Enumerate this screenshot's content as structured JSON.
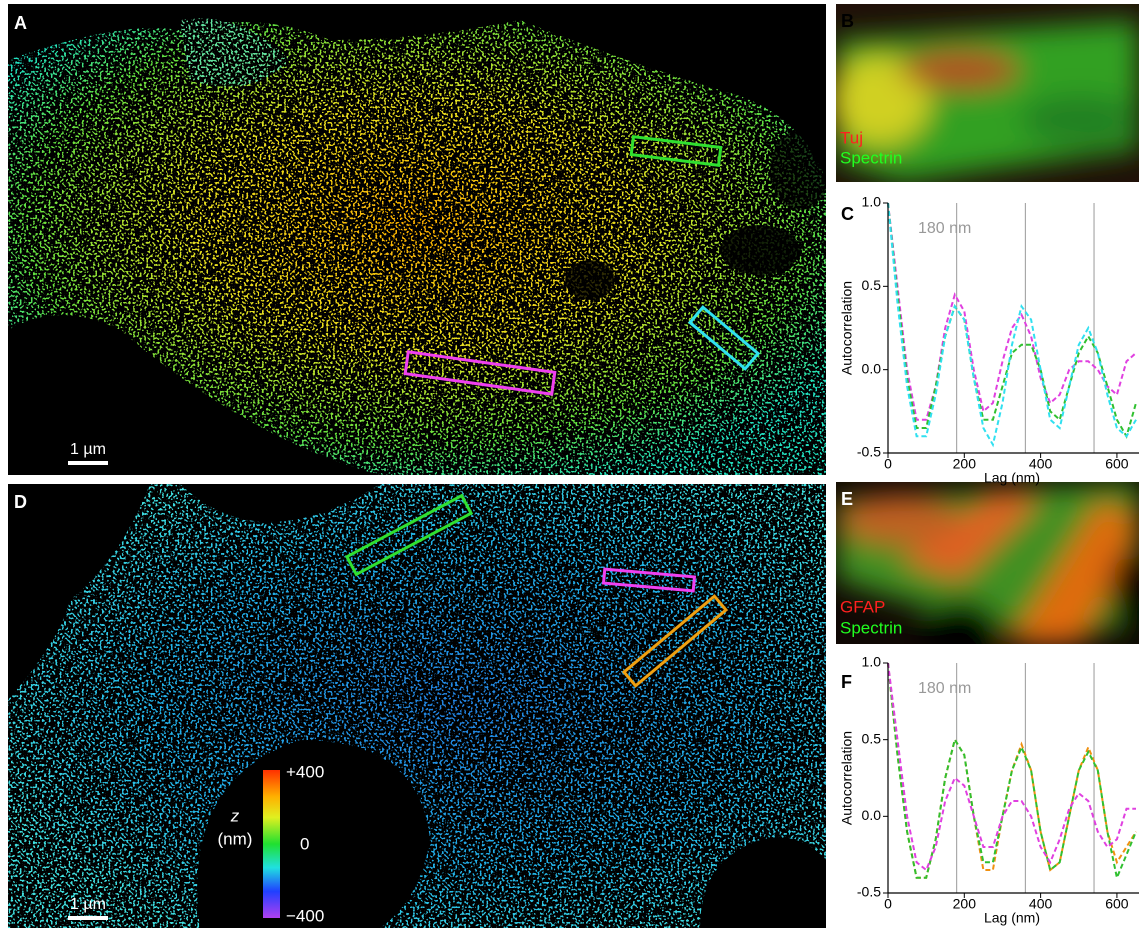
{
  "panel_labels": [
    "A",
    "B",
    "C",
    "D",
    "E",
    "F"
  ],
  "scale_bars": [
    "1 µm",
    "1 µm"
  ],
  "legend_b": [
    "Tuj",
    "Spectrin"
  ],
  "legend_e": [
    "GFAP",
    "Spectrin"
  ],
  "colorbar": {
    "title": "z",
    "unit": "(nm)",
    "labels": [
      "+400",
      "0",
      "−400"
    ]
  },
  "chart_data": [
    {
      "type": "line",
      "xlabel": "Lag (nm)",
      "ylabel": "Autocorrelation",
      "annotation": "180 nm",
      "xlim": [
        0,
        650
      ],
      "xticks": [
        0,
        200,
        400,
        600
      ],
      "ylim": [
        -0.5,
        1
      ],
      "yticks": [
        -0.5,
        {
          "value": 0,
          "label": "0.0"
        },
        0.5,
        {
          "value": 1,
          "label": "1.0"
        }
      ],
      "ref_lines": [
        180,
        360,
        540
      ],
      "x": [
        0,
        25,
        50,
        75,
        100,
        125,
        150,
        175,
        200,
        225,
        250,
        275,
        300,
        325,
        350,
        375,
        400,
        425,
        450,
        475,
        500,
        525,
        550,
        575,
        600,
        625,
        650
      ],
      "series": [
        {
          "color": "#e040e0",
          "values": [
            1.0,
            0.5,
            0.0,
            -0.3,
            -0.3,
            -0.1,
            0.25,
            0.45,
            0.35,
            0.0,
            -0.25,
            -0.2,
            0.05,
            0.25,
            0.33,
            0.2,
            -0.05,
            -0.2,
            -0.15,
            0.0,
            0.05,
            0.05,
            0.0,
            -0.1,
            -0.15,
            0.05,
            0.1
          ]
        },
        {
          "color": "#30c030",
          "values": [
            1.0,
            0.45,
            -0.05,
            -0.35,
            -0.35,
            -0.1,
            0.2,
            0.38,
            0.3,
            -0.05,
            -0.3,
            -0.3,
            -0.1,
            0.1,
            0.15,
            0.15,
            0.0,
            -0.25,
            -0.3,
            -0.1,
            0.1,
            0.2,
            0.1,
            -0.1,
            -0.3,
            -0.4,
            -0.2
          ]
        },
        {
          "color": "#30e0f0",
          "values": [
            1.0,
            0.4,
            -0.1,
            -0.4,
            -0.4,
            -0.15,
            0.2,
            0.38,
            0.3,
            -0.05,
            -0.35,
            -0.45,
            -0.2,
            0.15,
            0.38,
            0.3,
            0.0,
            -0.3,
            -0.35,
            -0.1,
            0.15,
            0.25,
            0.1,
            -0.15,
            -0.35,
            -0.4,
            -0.3
          ]
        }
      ]
    },
    {
      "type": "line",
      "xlabel": "Lag (nm)",
      "ylabel": "Autocorrelation",
      "annotation": "180 nm",
      "xlim": [
        0,
        650
      ],
      "xticks": [
        0,
        200,
        400,
        600
      ],
      "ylim": [
        -0.5,
        1
      ],
      "yticks": [
        -0.5,
        {
          "value": 0,
          "label": "0.0"
        },
        0.5,
        {
          "value": 1,
          "label": "1.0"
        }
      ],
      "ref_lines": [
        180,
        360,
        540
      ],
      "x": [
        0,
        25,
        50,
        75,
        100,
        125,
        150,
        175,
        200,
        225,
        250,
        275,
        300,
        325,
        350,
        375,
        400,
        425,
        450,
        475,
        500,
        525,
        550,
        575,
        600,
        625,
        650
      ],
      "series": [
        {
          "color": "#f09010",
          "values": [
            1.0,
            0.4,
            -0.1,
            -0.4,
            -0.4,
            -0.15,
            0.25,
            0.5,
            0.4,
            0.0,
            -0.35,
            -0.35,
            0.0,
            0.3,
            0.47,
            0.3,
            -0.1,
            -0.35,
            -0.3,
            0.0,
            0.3,
            0.45,
            0.3,
            -0.1,
            -0.3,
            -0.2,
            -0.1
          ]
        },
        {
          "color": "#30c030",
          "values": [
            1.0,
            0.4,
            -0.1,
            -0.4,
            -0.4,
            -0.15,
            0.25,
            0.5,
            0.4,
            0.0,
            -0.3,
            -0.3,
            0.0,
            0.3,
            0.45,
            0.3,
            -0.1,
            -0.35,
            -0.3,
            0.0,
            0.3,
            0.42,
            0.3,
            -0.1,
            -0.4,
            -0.25,
            -0.1
          ]
        },
        {
          "color": "#e040e0",
          "values": [
            1.0,
            0.5,
            0.0,
            -0.3,
            -0.35,
            -0.2,
            0.1,
            0.25,
            0.2,
            0.0,
            -0.2,
            -0.2,
            0.0,
            0.1,
            0.1,
            0.0,
            -0.2,
            -0.3,
            -0.15,
            0.05,
            0.15,
            0.1,
            -0.1,
            -0.2,
            -0.15,
            0.05,
            0.05
          ]
        }
      ]
    }
  ]
}
